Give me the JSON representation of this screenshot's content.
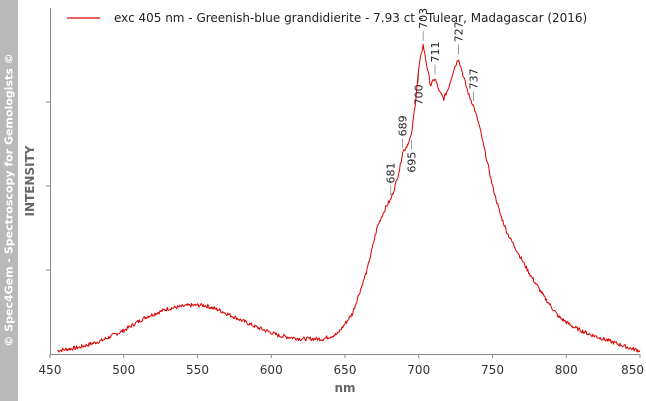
{
  "sidebar": {
    "credit": "© Spec4Gem - Spectroscopy for Gemologists ©"
  },
  "chart_data": {
    "type": "line",
    "xlabel": "nm",
    "ylabel": "INTENSITY",
    "xlim": [
      450,
      850
    ],
    "xticks": [
      450,
      500,
      550,
      600,
      650,
      700,
      750,
      800,
      850
    ],
    "ylim": [
      0,
      1
    ],
    "y_tick_labels_shown": false,
    "grid": false,
    "legend": "top-left",
    "line_color": "#dd0000",
    "series": [
      {
        "name": "exc 405 nm - Greenish-blue grandidierite - 7.93 ct - Tulear, Madagascar (2016)",
        "x": [
          455,
          470,
          485,
          500,
          515,
          530,
          545,
          555,
          565,
          575,
          590,
          605,
          620,
          635,
          645,
          655,
          665,
          672,
          678,
          681,
          684,
          687,
          689,
          692,
          695,
          698,
          700,
          702,
          703,
          705,
          708,
          711,
          714,
          717,
          720,
          724,
          727,
          730,
          734,
          737,
          741,
          745,
          750,
          755,
          760,
          765,
          775,
          785,
          795,
          805,
          815,
          825,
          835,
          845,
          850
        ],
        "y": [
          0.01,
          0.02,
          0.04,
          0.07,
          0.11,
          0.135,
          0.145,
          0.145,
          0.13,
          0.11,
          0.08,
          0.055,
          0.045,
          0.045,
          0.06,
          0.12,
          0.25,
          0.38,
          0.44,
          0.46,
          0.5,
          0.55,
          0.6,
          0.62,
          0.65,
          0.76,
          0.85,
          0.9,
          0.92,
          0.87,
          0.8,
          0.82,
          0.78,
          0.76,
          0.79,
          0.85,
          0.88,
          0.83,
          0.77,
          0.74,
          0.68,
          0.6,
          0.5,
          0.42,
          0.36,
          0.32,
          0.24,
          0.17,
          0.11,
          0.08,
          0.06,
          0.045,
          0.03,
          0.015,
          0.01
        ]
      }
    ],
    "annotations": [
      {
        "x": 681,
        "label": "681",
        "side": "above",
        "y_value": 0.46
      },
      {
        "x": 689,
        "label": "689",
        "side": "above",
        "y_value": 0.6
      },
      {
        "x": 695,
        "label": "695",
        "side": "below",
        "y_value": 0.65
      },
      {
        "x": 700,
        "label": "700",
        "side": "below",
        "y_value": 0.85
      },
      {
        "x": 703,
        "label": "703",
        "side": "above",
        "y_value": 0.92
      },
      {
        "x": 711,
        "label": "711",
        "side": "above",
        "y_value": 0.82
      },
      {
        "x": 727,
        "label": "727",
        "side": "above",
        "y_value": 0.88
      },
      {
        "x": 737,
        "label": "737",
        "side": "above",
        "y_value": 0.74
      }
    ]
  }
}
